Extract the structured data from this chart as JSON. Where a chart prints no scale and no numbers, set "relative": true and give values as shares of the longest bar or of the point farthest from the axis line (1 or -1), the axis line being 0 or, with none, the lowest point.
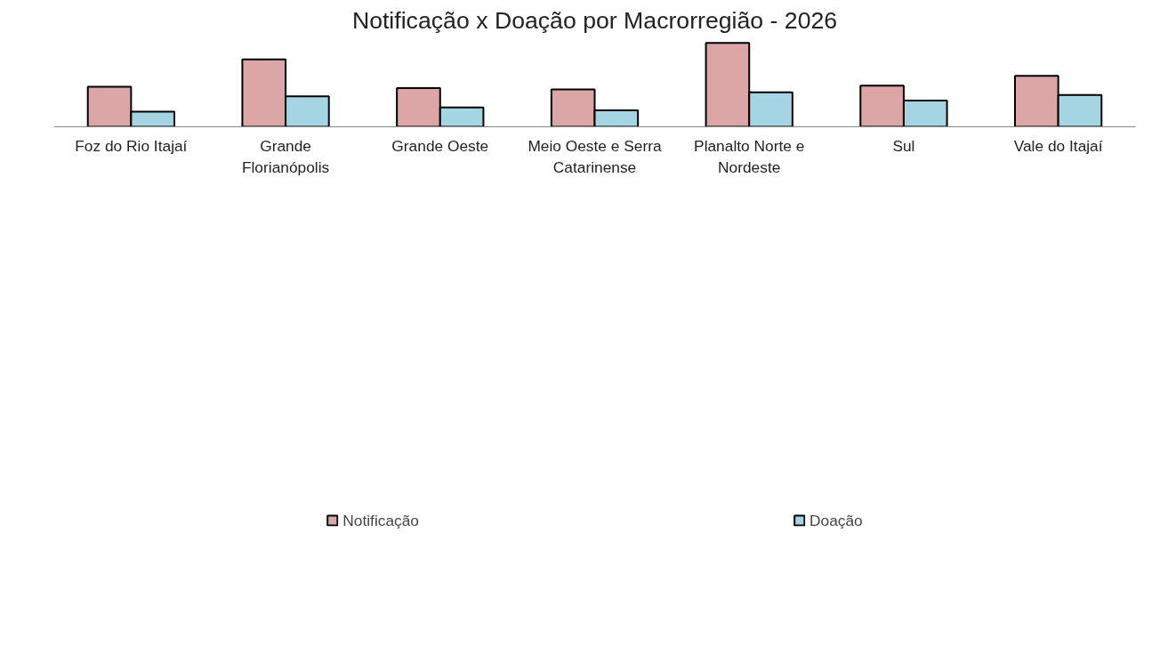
{
  "chart_data": {
    "type": "bar",
    "title": "Notificação x Doação por Macrorregião - 2026",
    "relative": true,
    "categories": [
      "Foz do Rio Itajaí",
      "Grande Florianópolis",
      "Grande Oeste",
      "Meio Oeste e Serra Catarinense",
      "Planalto Norte e Nordeste",
      "Sul",
      "Vale do Itajaí"
    ],
    "series": [
      {
        "name": "Notificação",
        "color": "#dda6a6",
        "values": [
          0.477,
          0.803,
          0.46,
          0.444,
          1,
          0.491,
          0.606
        ]
      },
      {
        "name": "Doação",
        "color": "#a5d5e2",
        "values": [
          0.181,
          0.362,
          0.23,
          0.197,
          0.411,
          0.312,
          0.378
        ]
      }
    ],
    "legend": "bottom",
    "grid": false
  }
}
